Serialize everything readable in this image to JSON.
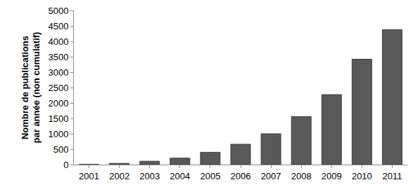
{
  "chart_data": {
    "type": "bar",
    "y_label": "Nombre de publications par année (non cumulatif)",
    "categories": [
      "2001",
      "2002",
      "2003",
      "2004",
      "2005",
      "2006",
      "2007",
      "2008",
      "2009",
      "2010",
      "2011"
    ],
    "values": [
      10,
      40,
      110,
      210,
      400,
      660,
      1000,
      1560,
      2270,
      3420,
      4380
    ],
    "color": "#595959",
    "ylim": [
      0,
      5000
    ],
    "yticks": [
      0,
      500,
      1000,
      1500,
      2000,
      2500,
      3000,
      3500,
      4000,
      4500,
      5000
    ],
    "grid": false
  }
}
